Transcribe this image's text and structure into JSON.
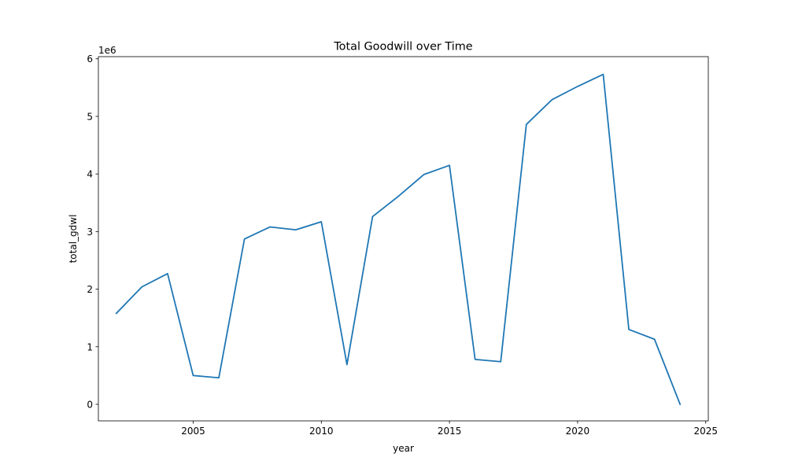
{
  "chart_data": {
    "type": "line",
    "title": "Total Goodwill over Time",
    "xlabel": "year",
    "ylabel": "total_gdwl",
    "y_offset_label": "1e6",
    "xlim": [
      2001.3,
      2025.1
    ],
    "ylim": [
      -287500,
      6037500
    ],
    "x_ticks": [
      2005,
      2010,
      2015,
      2020,
      2025
    ],
    "y_ticks": [
      0,
      1,
      2,
      3,
      4,
      5,
      6
    ],
    "y_tick_scale": 1000000,
    "grid": false,
    "legend": "none",
    "colors": {
      "series": "#1f77b4",
      "axes": "#000000",
      "background": "#ffffff"
    },
    "series": [
      {
        "x": [
          2002,
          2003,
          2004,
          2005,
          2006,
          2007,
          2008,
          2009,
          2010,
          2011,
          2012,
          2013,
          2014,
          2015,
          2016,
          2017,
          2018,
          2019,
          2020,
          2021,
          2022,
          2023,
          2024
        ],
        "values": [
          1580000,
          2040000,
          2270000,
          500000,
          460000,
          2870000,
          3080000,
          3030000,
          3170000,
          690000,
          3260000,
          3610000,
          3990000,
          4150000,
          780000,
          740000,
          4860000,
          5290000,
          5520000,
          5730000,
          1300000,
          1130000,
          0
        ]
      }
    ]
  }
}
